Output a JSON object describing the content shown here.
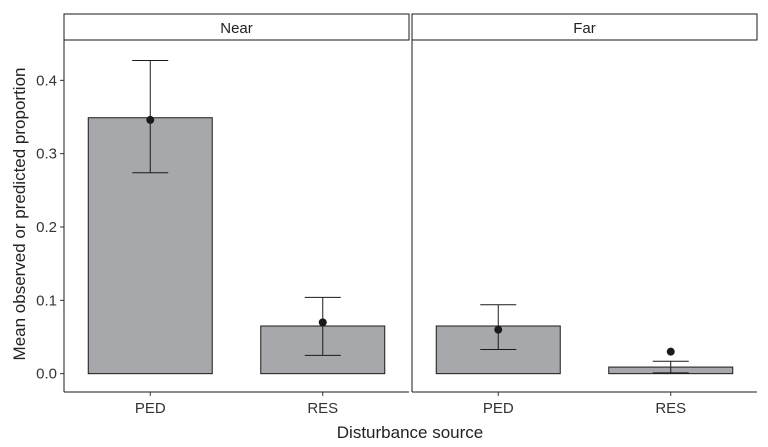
{
  "chart_data": {
    "type": "bar",
    "xlabel": "Disturbance source",
    "ylabel": "Mean observed or predicted proportion",
    "ylim": [
      -0.025,
      0.455
    ],
    "yticks": [
      0.0,
      0.1,
      0.2,
      0.3,
      0.4
    ],
    "ytick_labels": [
      "0.0",
      "0.1",
      "0.2",
      "0.3",
      "0.4"
    ],
    "categories": [
      "PED",
      "RES"
    ],
    "grid": false,
    "colors": {
      "bar": "#a7a8ac",
      "outline": "#1a1a1a",
      "point": "#1a1a1a"
    },
    "panels": [
      {
        "label": "Near",
        "bars": [
          {
            "category": "PED",
            "value": 0.349,
            "observed": 0.346,
            "ci_low": 0.274,
            "ci_high": 0.427
          },
          {
            "category": "RES",
            "value": 0.065,
            "observed": 0.07,
            "ci_low": 0.025,
            "ci_high": 0.104
          }
        ]
      },
      {
        "label": "Far",
        "bars": [
          {
            "category": "PED",
            "value": 0.065,
            "observed": 0.06,
            "ci_low": 0.033,
            "ci_high": 0.094
          },
          {
            "category": "RES",
            "value": 0.009,
            "observed": 0.03,
            "ci_low": 0.001,
            "ci_high": 0.017
          }
        ]
      }
    ]
  }
}
